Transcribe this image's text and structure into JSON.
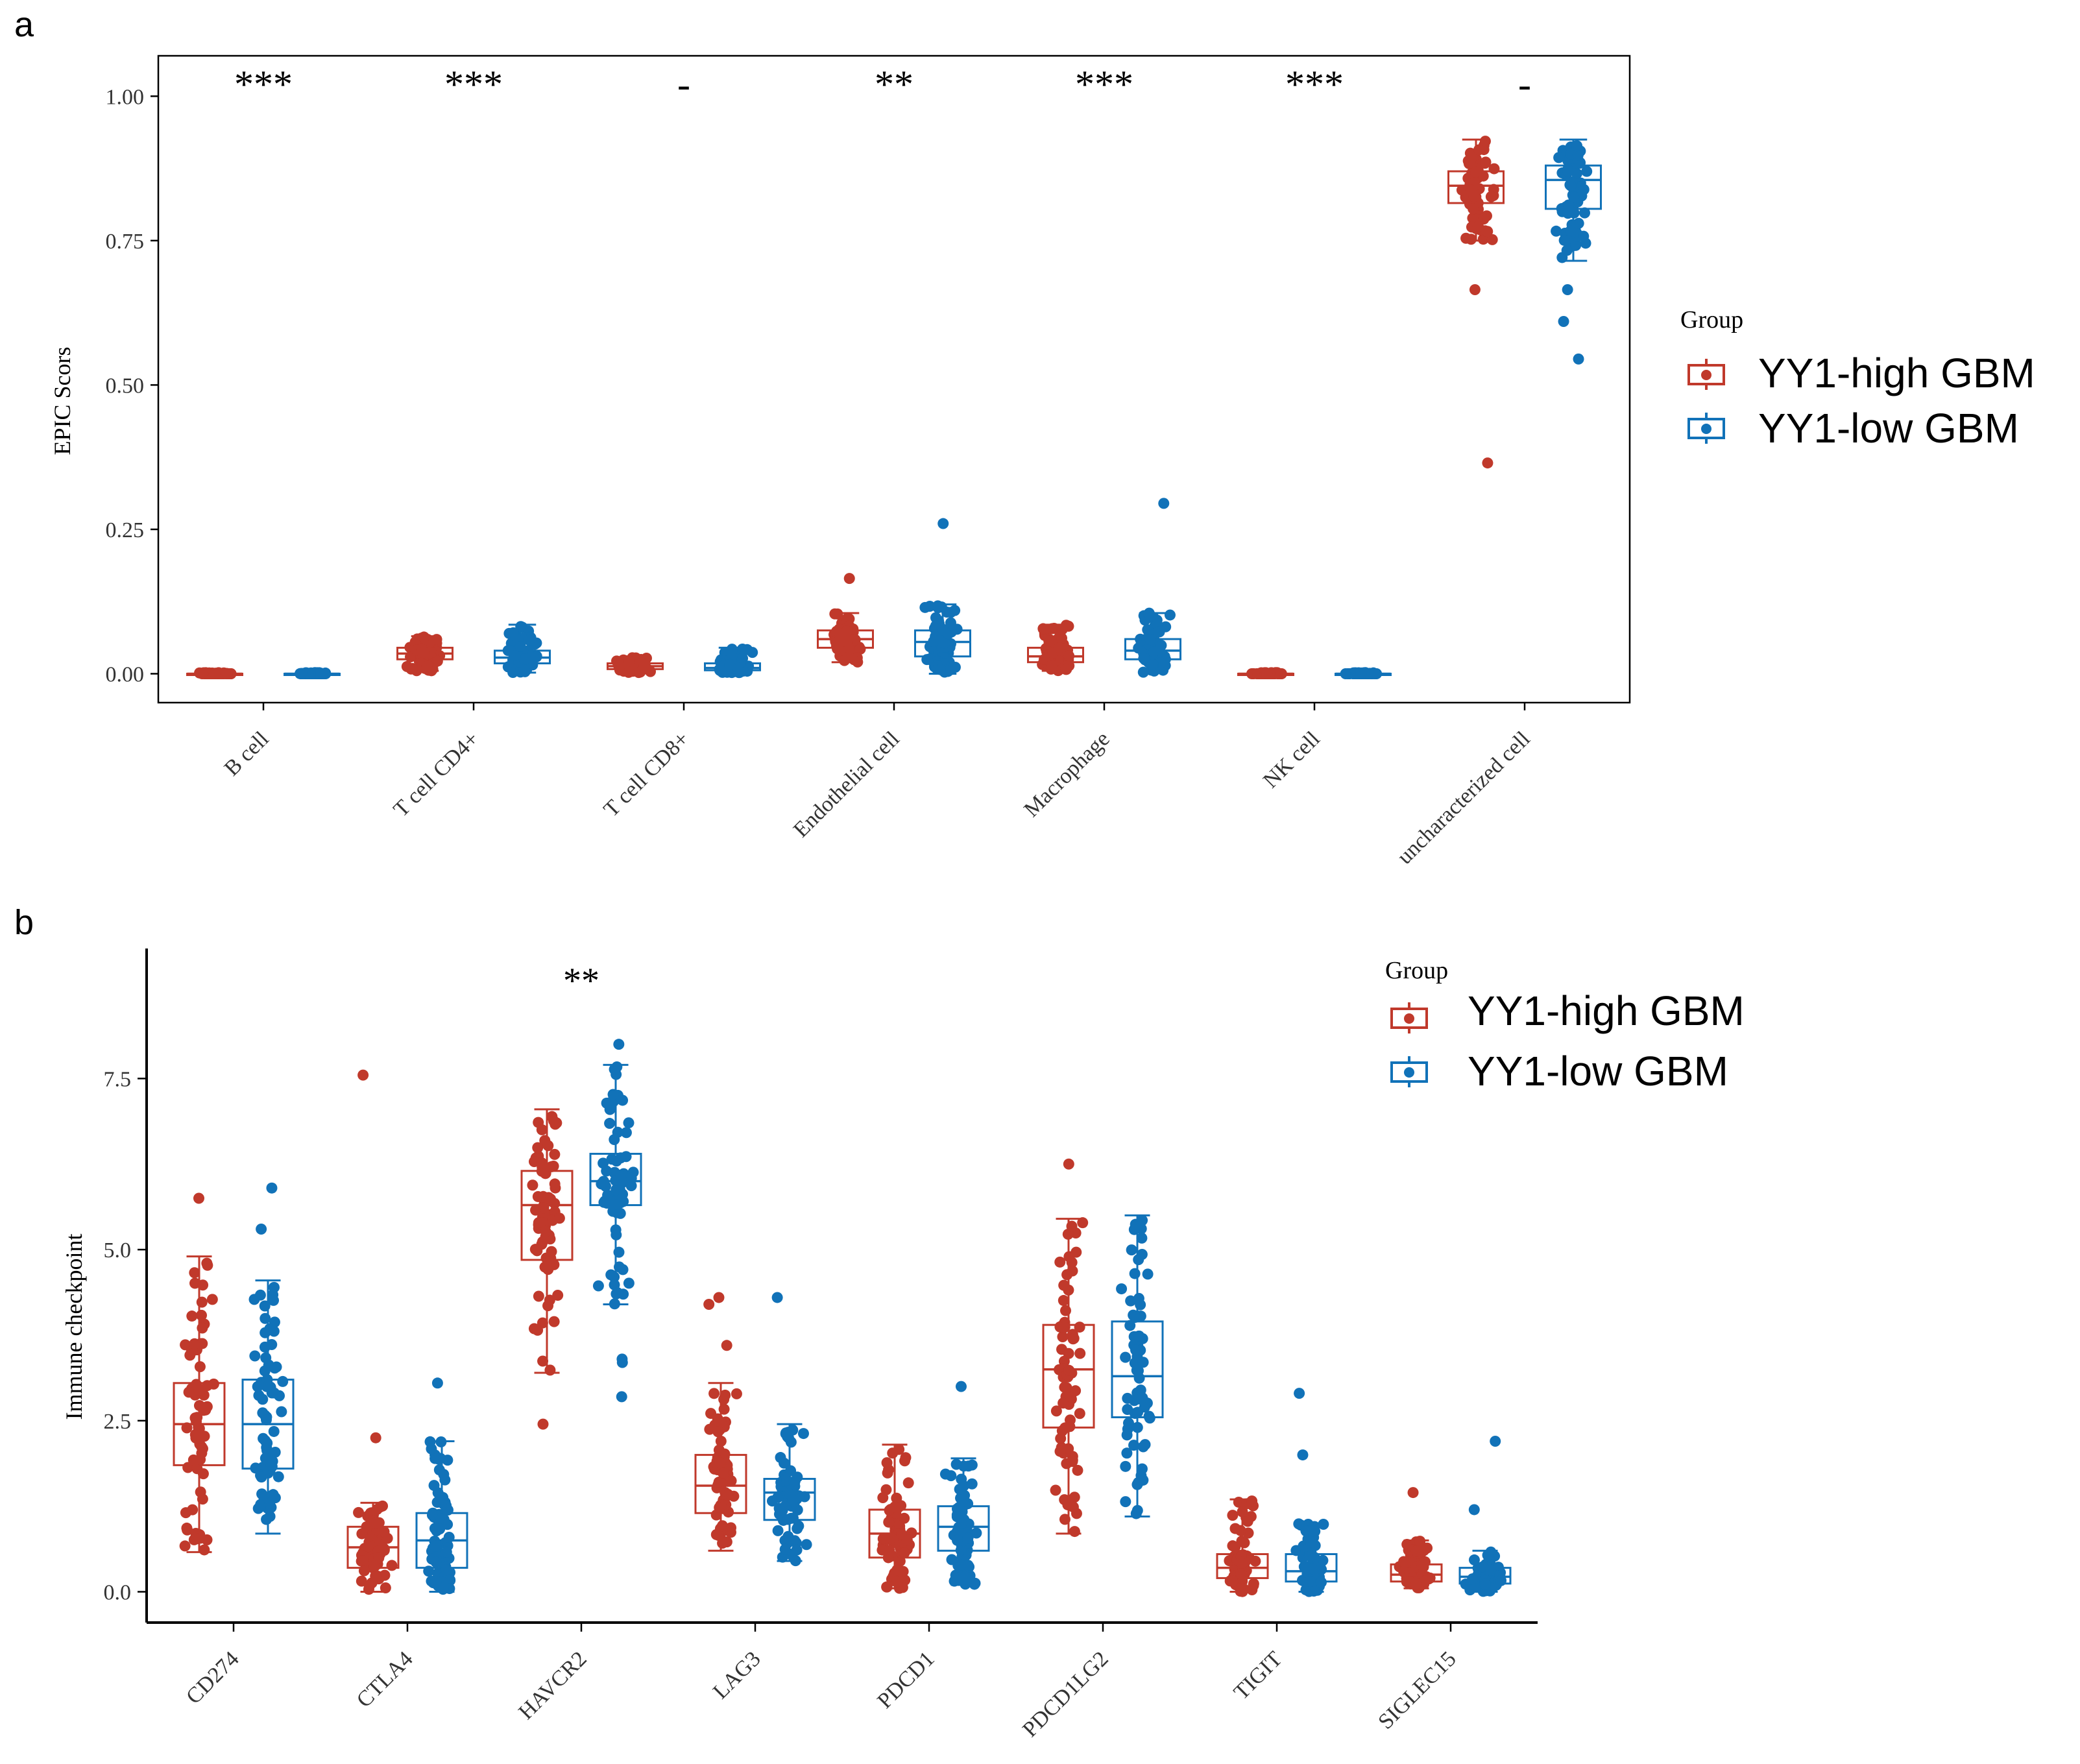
{
  "colors": {
    "high": "#c0392b",
    "low": "#1172b8",
    "axis": "#000000",
    "tick_text": "#333333"
  },
  "legend": {
    "title": "Group",
    "items": [
      "YY1-high GBM",
      "YY1-low GBM"
    ]
  },
  "chart_data": [
    {
      "panel": "a",
      "type": "boxplot",
      "ylabel": "EPIC Scors",
      "xlabel": "",
      "ylim": [
        -0.05,
        1.07
      ],
      "yticks": [
        0.0,
        0.25,
        0.5,
        0.75,
        1.0
      ],
      "ytick_labels": [
        "0.00",
        "0.25",
        "0.50",
        "0.75",
        "1.00"
      ],
      "categories": [
        "B cell",
        "T cell CD4+",
        "T cell CD8+",
        "Endothelial cell",
        "Macrophage",
        "NK cell",
        "uncharacterized cell"
      ],
      "significance": [
        "***",
        "***",
        "-",
        "**",
        "***",
        "***",
        "-"
      ],
      "legend_position": "right",
      "series": [
        {
          "name": "YY1-high GBM",
          "boxes": [
            {
              "min": 0.0,
              "q1": 0.0,
              "median": 0.0,
              "q3": 0.0,
              "max": 0.002
            },
            {
              "min": 0.005,
              "q1": 0.025,
              "median": 0.035,
              "q3": 0.045,
              "max": 0.065
            },
            {
              "min": 0.002,
              "q1": 0.008,
              "median": 0.013,
              "q3": 0.018,
              "max": 0.028
            },
            {
              "min": 0.02,
              "q1": 0.045,
              "median": 0.06,
              "q3": 0.075,
              "max": 0.105
            },
            {
              "min": 0.005,
              "q1": 0.02,
              "median": 0.03,
              "q3": 0.045,
              "max": 0.085
            },
            {
              "min": 0.0,
              "q1": 0.0,
              "median": 0.0,
              "q3": 0.0,
              "max": 0.002
            },
            {
              "min": 0.75,
              "q1": 0.815,
              "median": 0.845,
              "q3": 0.87,
              "max": 0.925
            }
          ],
          "outliers": [
            [],
            [],
            [],
            [
              0.165
            ],
            [],
            [],
            [
              0.665,
              0.365
            ]
          ]
        },
        {
          "name": "YY1-low GBM",
          "boxes": [
            {
              "min": 0.0,
              "q1": 0.0,
              "median": 0.0,
              "q3": 0.0,
              "max": 0.002
            },
            {
              "min": 0.002,
              "q1": 0.018,
              "median": 0.028,
              "q3": 0.04,
              "max": 0.085
            },
            {
              "min": 0.002,
              "q1": 0.006,
              "median": 0.01,
              "q3": 0.018,
              "max": 0.045
            },
            {
              "min": 0.0,
              "q1": 0.03,
              "median": 0.055,
              "q3": 0.075,
              "max": 0.12
            },
            {
              "min": 0.002,
              "q1": 0.025,
              "median": 0.04,
              "q3": 0.06,
              "max": 0.105
            },
            {
              "min": 0.0,
              "q1": 0.0,
              "median": 0.0,
              "q3": 0.0,
              "max": 0.002
            },
            {
              "min": 0.715,
              "q1": 0.805,
              "median": 0.855,
              "q3": 0.88,
              "max": 0.925
            }
          ],
          "outliers": [
            [],
            [],
            [],
            [
              0.26
            ],
            [
              0.295
            ],
            [],
            [
              0.665,
              0.61,
              0.545
            ]
          ]
        }
      ]
    },
    {
      "panel": "b",
      "type": "boxplot",
      "ylabel": "Immune checkpoint",
      "xlabel": "",
      "ylim": [
        -0.45,
        9.4
      ],
      "yticks": [
        0.0,
        2.5,
        5.0,
        7.5
      ],
      "ytick_labels": [
        "0.0",
        "2.5",
        "5.0",
        "7.5"
      ],
      "categories": [
        "CD274",
        "CTLA4",
        "HAVCR2",
        "LAG3",
        "PDCD1",
        "PDCD1LG2",
        "TIGIT",
        "SIGLEC15"
      ],
      "significance": [
        "",
        "",
        "**",
        "",
        "",
        "",
        "",
        ""
      ],
      "legend_position": "top-right",
      "series": [
        {
          "name": "YY1-high GBM",
          "boxes": [
            {
              "min": 0.58,
              "q1": 1.85,
              "median": 2.45,
              "q3": 3.05,
              "max": 4.9
            },
            {
              "min": 0.0,
              "q1": 0.35,
              "median": 0.65,
              "q3": 0.95,
              "max": 1.3
            },
            {
              "min": 3.2,
              "q1": 4.85,
              "median": 5.65,
              "q3": 6.15,
              "max": 7.05
            },
            {
              "min": 0.6,
              "q1": 1.15,
              "median": 1.55,
              "q3": 2.0,
              "max": 3.05
            },
            {
              "min": 0.05,
              "q1": 0.5,
              "median": 0.85,
              "q3": 1.2,
              "max": 2.15
            },
            {
              "min": 0.85,
              "q1": 2.4,
              "median": 3.25,
              "q3": 3.9,
              "max": 5.45
            },
            {
              "min": 0.0,
              "q1": 0.2,
              "median": 0.35,
              "q3": 0.55,
              "max": 1.35
            },
            {
              "min": 0.05,
              "q1": 0.15,
              "median": 0.25,
              "q3": 0.4,
              "max": 0.75
            }
          ],
          "outliers": [
            [
              5.75
            ],
            [
              7.55,
              2.25
            ],
            [
              2.45
            ],
            [
              4.3,
              4.2,
              3.6
            ],
            [],
            [
              6.25
            ],
            [],
            [
              1.45
            ]
          ]
        },
        {
          "name": "YY1-low GBM",
          "boxes": [
            {
              "min": 0.85,
              "q1": 1.8,
              "median": 2.45,
              "q3": 3.1,
              "max": 4.55
            },
            {
              "min": 0.0,
              "q1": 0.35,
              "median": 0.75,
              "q3": 1.15,
              "max": 2.2
            },
            {
              "min": 4.2,
              "q1": 5.65,
              "median": 6.0,
              "q3": 6.4,
              "max": 7.7
            },
            {
              "min": 0.45,
              "q1": 1.05,
              "median": 1.45,
              "q3": 1.65,
              "max": 2.45
            },
            {
              "min": 0.1,
              "q1": 0.6,
              "median": 0.95,
              "q3": 1.25,
              "max": 1.95
            },
            {
              "min": 1.1,
              "q1": 2.55,
              "median": 3.15,
              "q3": 3.95,
              "max": 5.5
            },
            {
              "min": 0.0,
              "q1": 0.15,
              "median": 0.3,
              "q3": 0.55,
              "max": 1.0
            },
            {
              "min": 0.0,
              "q1": 0.12,
              "median": 0.22,
              "q3": 0.35,
              "max": 0.6
            }
          ],
          "outliers": [
            [
              5.9,
              5.3
            ],
            [
              3.05
            ],
            [
              8.0,
              3.4,
              3.35,
              2.85
            ],
            [
              4.3
            ],
            [
              3.0
            ],
            [],
            [
              2.9,
              2.0
            ],
            [
              2.2,
              1.2
            ]
          ]
        }
      ]
    }
  ]
}
